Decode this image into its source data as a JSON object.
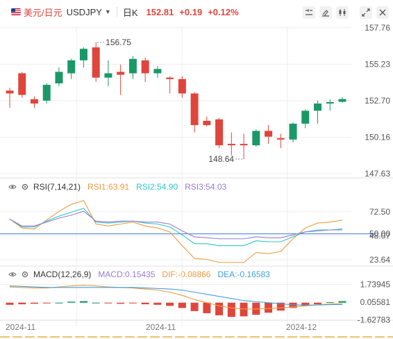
{
  "header": {
    "pair_name": "美元/日元",
    "symbol": "USDJPY",
    "timeframe": "日K",
    "price": "152.81",
    "change": "+0.19",
    "change_pct": "+0.12%"
  },
  "colors": {
    "up": "#e0453b",
    "down": "#1a9868",
    "grid": "#eeeeee",
    "axis_text": "#555555"
  },
  "icons": [
    "crosshair-icon",
    "draw-icon",
    "indicator-icon",
    "expand-icon",
    "close-icon"
  ],
  "chart_data": [
    {
      "type": "candlestick",
      "title": "",
      "y_axis_ticks": [
        "157.76",
        "155.23",
        "152.70",
        "150.16",
        "147.63"
      ],
      "ylim": [
        147.63,
        157.76
      ],
      "annotations": [
        "156.75",
        "148.64"
      ],
      "candles": [
        {
          "o": 153.4,
          "h": 153.6,
          "l": 152.2,
          "c": 153.2
        },
        {
          "o": 154.6,
          "h": 154.7,
          "l": 152.9,
          "c": 153.1
        },
        {
          "o": 152.8,
          "h": 153.0,
          "l": 152.2,
          "c": 152.5
        },
        {
          "o": 152.7,
          "h": 153.9,
          "l": 152.5,
          "c": 153.8
        },
        {
          "o": 153.9,
          "h": 155.0,
          "l": 153.7,
          "c": 154.7
        },
        {
          "o": 154.6,
          "h": 155.6,
          "l": 154.2,
          "c": 155.5
        },
        {
          "o": 155.5,
          "h": 156.4,
          "l": 155.0,
          "c": 156.3
        },
        {
          "o": 156.4,
          "h": 156.75,
          "l": 154.0,
          "c": 154.3
        },
        {
          "o": 154.3,
          "h": 155.5,
          "l": 153.7,
          "c": 154.6
        },
        {
          "o": 154.7,
          "h": 155.2,
          "l": 153.1,
          "c": 154.5
        },
        {
          "o": 154.6,
          "h": 155.8,
          "l": 154.2,
          "c": 155.6
        },
        {
          "o": 155.5,
          "h": 155.7,
          "l": 154.0,
          "c": 154.6
        },
        {
          "o": 154.6,
          "h": 155.1,
          "l": 154.3,
          "c": 154.9
        },
        {
          "o": 154.3,
          "h": 154.4,
          "l": 153.2,
          "c": 154.2
        },
        {
          "o": 154.2,
          "h": 154.4,
          "l": 152.9,
          "c": 153.2
        },
        {
          "o": 153.2,
          "h": 153.3,
          "l": 150.5,
          "c": 151.0
        },
        {
          "o": 151.3,
          "h": 151.6,
          "l": 150.9,
          "c": 151.0
        },
        {
          "o": 151.4,
          "h": 151.5,
          "l": 149.4,
          "c": 149.6
        },
        {
          "o": 149.7,
          "h": 150.5,
          "l": 148.9,
          "c": 149.6
        },
        {
          "o": 149.7,
          "h": 150.4,
          "l": 148.64,
          "c": 149.6
        },
        {
          "o": 149.6,
          "h": 150.7,
          "l": 149.5,
          "c": 150.6
        },
        {
          "o": 150.6,
          "h": 151.0,
          "l": 149.7,
          "c": 150.2
        },
        {
          "o": 150.1,
          "h": 150.4,
          "l": 149.4,
          "c": 150.0
        },
        {
          "o": 150.0,
          "h": 151.2,
          "l": 149.8,
          "c": 151.1
        },
        {
          "o": 151.1,
          "h": 152.1,
          "l": 150.8,
          "c": 152.0
        },
        {
          "o": 152.0,
          "h": 152.7,
          "l": 151.1,
          "c": 152.5
        },
        {
          "o": 152.5,
          "h": 152.8,
          "l": 152.0,
          "c": 152.6
        },
        {
          "o": 152.62,
          "h": 152.95,
          "l": 152.55,
          "c": 152.81
        }
      ]
    },
    {
      "type": "line",
      "name": "RSI",
      "label": "RSI(7,14,21)",
      "values_text": [
        "RSI1:63.91",
        "RSI2:54.90",
        "RSI3:54.03"
      ],
      "y_axis_ticks": [
        "72.50",
        "50.00",
        "48.07",
        "23.64"
      ],
      "ylim": [
        18,
        90
      ],
      "reference_line": 50,
      "series": [
        {
          "name": "RSI1",
          "color": "#f09a3e",
          "values": [
            65,
            56,
            55,
            64,
            73,
            80,
            84,
            60,
            58,
            60,
            62,
            58,
            56,
            52,
            38,
            25,
            24,
            21,
            21,
            21,
            31,
            30,
            32,
            45,
            56,
            61,
            62,
            64
          ]
        },
        {
          "name": "RSI2",
          "color": "#2ec7c7",
          "values": [
            65,
            57,
            57,
            63,
            68,
            72,
            76,
            62,
            61,
            62,
            63,
            61,
            60,
            57,
            49,
            40,
            40,
            38,
            38,
            38,
            43,
            42,
            42,
            47,
            52,
            54,
            54,
            55
          ]
        },
        {
          "name": "RSI3",
          "color": "#9b7bd9",
          "values": [
            65,
            58,
            58,
            62,
            66,
            69,
            73,
            63,
            62,
            63,
            63,
            62,
            62,
            60,
            53,
            47,
            46,
            45,
            45,
            45,
            47,
            46,
            46,
            49,
            52,
            53,
            54,
            54
          ]
        }
      ]
    },
    {
      "type": "bar",
      "name": "MACD",
      "label": "MACD(12,26,9)",
      "values_text": [
        "MACD:0.15435",
        "DIF:-0.08866",
        "DEA:-0.16583"
      ],
      "y_axis_ticks": [
        "1.73945",
        "0.05581",
        "-1.62783"
      ],
      "ylim": [
        -2.0,
        2.1
      ],
      "histogram": [
        -0.2,
        -0.15,
        -0.1,
        -0.05,
        0.0,
        0.1,
        0.15,
        0.0,
        -0.05,
        -0.1,
        -0.05,
        -0.15,
        -0.2,
        -0.3,
        -0.5,
        -0.8,
        -1.0,
        -1.2,
        -1.35,
        -1.3,
        -1.15,
        -0.95,
        -0.75,
        -0.5,
        -0.3,
        -0.15,
        0.05,
        0.15
      ],
      "series": [
        {
          "name": "DIF",
          "color": "#f09a3e",
          "values": [
            1.5,
            1.45,
            1.4,
            1.4,
            1.5,
            1.6,
            1.65,
            1.6,
            1.5,
            1.45,
            1.4,
            1.3,
            1.2,
            1.0,
            0.7,
            0.3,
            0.0,
            -0.3,
            -0.5,
            -0.6,
            -0.6,
            -0.55,
            -0.5,
            -0.4,
            -0.3,
            -0.2,
            -0.12,
            -0.09
          ]
        },
        {
          "name": "DEA",
          "color": "#3ea0e0",
          "values": [
            1.6,
            1.55,
            1.5,
            1.45,
            1.45,
            1.45,
            1.45,
            1.45,
            1.45,
            1.45,
            1.45,
            1.4,
            1.35,
            1.3,
            1.2,
            1.0,
            0.8,
            0.6,
            0.4,
            0.2,
            0.1,
            0.0,
            -0.1,
            -0.2,
            -0.23,
            -0.22,
            -0.19,
            -0.17
          ]
        }
      ]
    }
  ],
  "x_axis_labels": [
    "2024-11",
    "2024-11",
    "2024-12"
  ]
}
